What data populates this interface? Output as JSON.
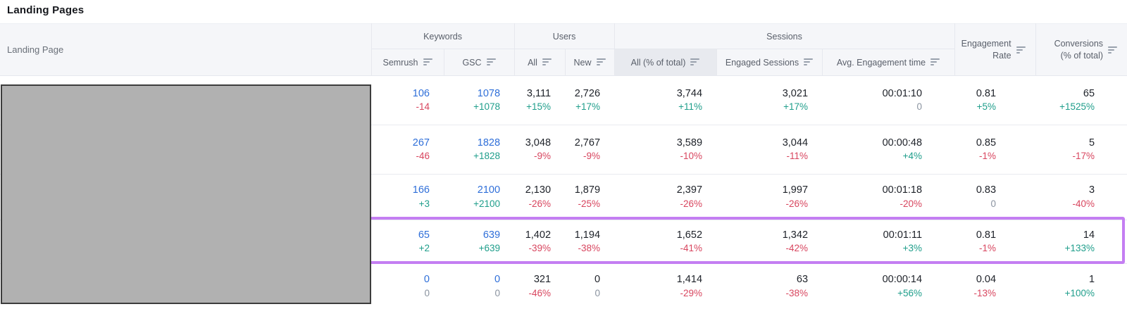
{
  "page_title": "Landing Pages",
  "colors": {
    "link_blue": "#2f6fd9",
    "positive_green": "#1f9e8b",
    "negative_red": "#d8465f",
    "neutral_gray": "#8a93a0",
    "highlight_purple": "#c47ef2",
    "sorted_header_bg": "#e8eaef"
  },
  "table": {
    "col_landing_page": "Landing Page",
    "groups": [
      {
        "label": "Keywords"
      },
      {
        "label": "Users"
      },
      {
        "label": "Sessions"
      }
    ],
    "subcols": {
      "semrush": "Semrush",
      "gsc": "GSC",
      "users_all": "All",
      "users_new": "New",
      "sessions_all": "All (% of total)",
      "engaged": "Engaged Sessions",
      "avg_time": "Avg. Engagement time"
    },
    "col_engagement_rate_line1": "Engagement",
    "col_engagement_rate_line2": "Rate",
    "col_conversions_line1": "Conversions",
    "col_conversions_line2": "(% of total)",
    "sorted_column": "All (% of total)"
  },
  "rows": [
    {
      "highlighted": false,
      "cells": [
        {
          "v": "106",
          "d": "-14",
          "t": "neg"
        },
        {
          "v": "1078",
          "d": "+1078",
          "t": "pos"
        },
        {
          "v": "3,111",
          "d": "+15%",
          "t": "pos"
        },
        {
          "v": "2,726",
          "d": "+17%",
          "t": "pos"
        },
        {
          "v": "3,744",
          "d": "+11%",
          "t": "pos"
        },
        {
          "v": "3,021",
          "d": "+17%",
          "t": "pos"
        },
        {
          "v": "00:01:10",
          "d": "0",
          "t": "neu"
        },
        {
          "v": "0.81",
          "d": "+5%",
          "t": "pos"
        },
        {
          "v": "65",
          "d": "+1525%",
          "t": "pos"
        }
      ]
    },
    {
      "highlighted": false,
      "cells": [
        {
          "v": "267",
          "d": "-46",
          "t": "neg"
        },
        {
          "v": "1828",
          "d": "+1828",
          "t": "pos"
        },
        {
          "v": "3,048",
          "d": "-9%",
          "t": "neg"
        },
        {
          "v": "2,767",
          "d": "-9%",
          "t": "neg"
        },
        {
          "v": "3,589",
          "d": "-10%",
          "t": "neg"
        },
        {
          "v": "3,044",
          "d": "-11%",
          "t": "neg"
        },
        {
          "v": "00:00:48",
          "d": "+4%",
          "t": "pos"
        },
        {
          "v": "0.85",
          "d": "-1%",
          "t": "neg"
        },
        {
          "v": "5",
          "d": "-17%",
          "t": "neg"
        }
      ]
    },
    {
      "highlighted": false,
      "cells": [
        {
          "v": "166",
          "d": "+3",
          "t": "pos"
        },
        {
          "v": "2100",
          "d": "+2100",
          "t": "pos"
        },
        {
          "v": "2,130",
          "d": "-26%",
          "t": "neg"
        },
        {
          "v": "1,879",
          "d": "-25%",
          "t": "neg"
        },
        {
          "v": "2,397",
          "d": "-26%",
          "t": "neg"
        },
        {
          "v": "1,997",
          "d": "-26%",
          "t": "neg"
        },
        {
          "v": "00:01:18",
          "d": "-20%",
          "t": "neg"
        },
        {
          "v": "0.83",
          "d": "0",
          "t": "neu"
        },
        {
          "v": "3",
          "d": "-40%",
          "t": "neg"
        }
      ]
    },
    {
      "highlighted": true,
      "cells": [
        {
          "v": "65",
          "d": "+2",
          "t": "pos"
        },
        {
          "v": "639",
          "d": "+639",
          "t": "pos"
        },
        {
          "v": "1,402",
          "d": "-39%",
          "t": "neg"
        },
        {
          "v": "1,194",
          "d": "-38%",
          "t": "neg"
        },
        {
          "v": "1,652",
          "d": "-41%",
          "t": "neg"
        },
        {
          "v": "1,342",
          "d": "-42%",
          "t": "neg"
        },
        {
          "v": "00:01:11",
          "d": "+3%",
          "t": "pos"
        },
        {
          "v": "0.81",
          "d": "-1%",
          "t": "neg"
        },
        {
          "v": "14",
          "d": "+133%",
          "t": "pos"
        }
      ]
    },
    {
      "highlighted": false,
      "cells": [
        {
          "v": "0",
          "d": "0",
          "t": "neu"
        },
        {
          "v": "0",
          "d": "0",
          "t": "neu"
        },
        {
          "v": "321",
          "d": "-46%",
          "t": "neg"
        },
        {
          "v": "0",
          "d": "0",
          "t": "neu"
        },
        {
          "v": "1,414",
          "d": "-29%",
          "t": "neg"
        },
        {
          "v": "63",
          "d": "-38%",
          "t": "neg"
        },
        {
          "v": "00:00:14",
          "d": "+56%",
          "t": "pos"
        },
        {
          "v": "0.04",
          "d": "-13%",
          "t": "neg"
        },
        {
          "v": "1",
          "d": "+100%",
          "t": "pos"
        }
      ]
    }
  ]
}
